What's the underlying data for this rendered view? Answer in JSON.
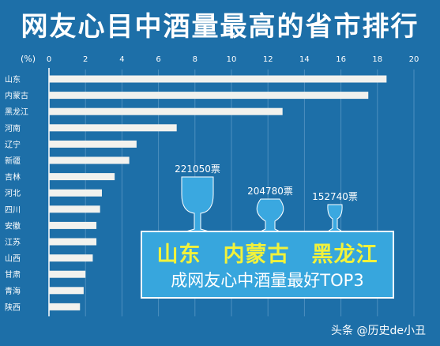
{
  "title": "网友心目中酒量最高的省市排行",
  "watermark": "头条 @历史de小丑",
  "callout": {
    "main": "山东　内蒙古　黑龙江",
    "sub": "成网友心中酒量最好TOP3"
  },
  "colors": {
    "background": "#1d6fa8",
    "bar": "#f2f2ee",
    "text": "#ffffff",
    "highlight": "#f2f23a",
    "callout_bg": "#37a6dd",
    "glass": "#3aa8e0"
  },
  "chart_data": {
    "type": "bar",
    "orientation": "horizontal",
    "axis_unit": "(%)",
    "xlim": [
      0,
      20
    ],
    "ticks": [
      "0",
      "2",
      "4",
      "6",
      "8",
      "10",
      "12",
      "14",
      "16",
      "18",
      "20"
    ],
    "categories": [
      "山东",
      "内蒙古",
      "黑龙江",
      "河南",
      "辽宁",
      "新疆",
      "吉林",
      "河北",
      "四川",
      "安徽",
      "江苏",
      "山西",
      "甘肃",
      "青海",
      "陕西"
    ],
    "values": [
      18.5,
      17.5,
      12.8,
      7.0,
      4.8,
      4.4,
      3.6,
      2.9,
      2.8,
      2.6,
      2.6,
      2.4,
      2.0,
      1.9,
      1.7
    ],
    "grid": true,
    "glass_annotations": [
      {
        "label": "221050票",
        "category": "山东",
        "glass": "wine"
      },
      {
        "label": "204780票",
        "category": "内蒙古",
        "glass": "round"
      },
      {
        "label": "152740票",
        "category": "黑龙江",
        "glass": "slim"
      }
    ]
  }
}
